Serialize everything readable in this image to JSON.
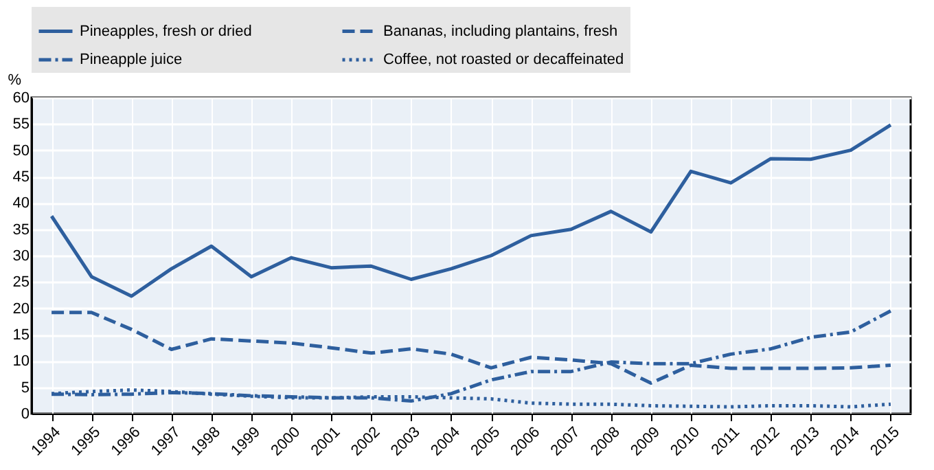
{
  "chart_data": {
    "type": "line",
    "ylabel": "%",
    "categories": [
      "1994",
      "1995",
      "1996",
      "1997",
      "1998",
      "1999",
      "2000",
      "2001",
      "2002",
      "2003",
      "2004",
      "2005",
      "2006",
      "2007",
      "2008",
      "2009",
      "2010",
      "2011",
      "2012",
      "2013",
      "2014",
      "2015"
    ],
    "series": [
      {
        "name": "Pineapples, fresh or dried",
        "color": "#2e5f9e",
        "line_style": "solid",
        "values": [
          37.5,
          26,
          22.3,
          27.5,
          31.8,
          26,
          29.6,
          27.7,
          28,
          25.5,
          27.5,
          30,
          33.8,
          35,
          38.4,
          34.5,
          46,
          43.8,
          48.4,
          48.3,
          50,
          54.8
        ]
      },
      {
        "name": "Bananas, including plantains, fresh",
        "color": "#2e5f9e",
        "line_style": "dashed",
        "values": [
          19.2,
          19.2,
          16,
          12.2,
          14.2,
          13.8,
          13.4,
          12.5,
          11.5,
          12.3,
          11.3,
          8.7,
          10.7,
          10.2,
          9.5,
          5.8,
          9.2,
          8.6,
          8.6,
          8.6,
          8.7,
          9.2
        ]
      },
      {
        "name": "Pineapple juice",
        "color": "#2e5f9e",
        "line_style": "dashdot",
        "values": [
          3.7,
          3.6,
          3.7,
          4,
          3.8,
          3.4,
          3.2,
          3,
          3,
          2.4,
          3.8,
          6.4,
          8,
          8,
          9.8,
          9.5,
          9.5,
          11.3,
          12.3,
          14.5,
          15.5,
          19.5
        ]
      },
      {
        "name": "Coffee, not roasted or decaffeinated",
        "color": "#2e5f9e",
        "line_style": "dotted",
        "values": [
          3.8,
          4.2,
          4.5,
          4.2,
          3.7,
          3.3,
          3,
          3,
          3.2,
          3.2,
          3,
          2.8,
          2,
          1.8,
          1.8,
          1.5,
          1.4,
          1.3,
          1.5,
          1.5,
          1.3,
          1.8
        ]
      }
    ],
    "ylim": [
      0,
      60
    ],
    "yticks": [
      0,
      5,
      10,
      15,
      20,
      25,
      30,
      35,
      40,
      45,
      50,
      55,
      60
    ],
    "grid": true,
    "legend": "top"
  }
}
